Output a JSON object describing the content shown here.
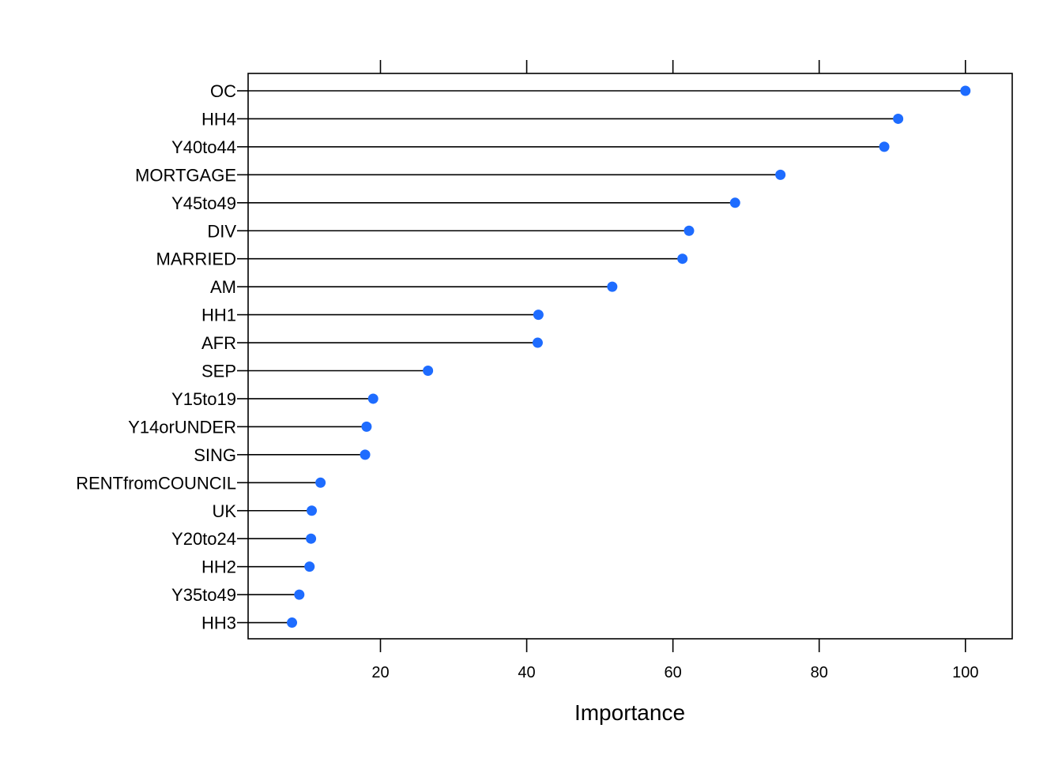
{
  "chart_data": {
    "type": "dotplot",
    "xlabel": "Importance",
    "ylabel": "",
    "title": "",
    "xlim": [
      1.9,
      106.4
    ],
    "xticks": [
      20,
      40,
      60,
      80,
      100
    ],
    "grid": false,
    "point_color": "#1e6cff",
    "categories": [
      "OC",
      "HH4",
      "Y40to44",
      "MORTGAGE",
      "Y45to49",
      "DIV",
      "MARRIED",
      "AM",
      "HH1",
      "AFR",
      "SEP",
      "Y15to19",
      "Y14orUNDER",
      "SING",
      "RENTfromCOUNCIL",
      "UK",
      "Y20to24",
      "HH2",
      "Y35to49",
      "HH3"
    ],
    "values": [
      100.0,
      90.8,
      88.9,
      74.7,
      68.5,
      62.2,
      61.3,
      51.7,
      41.6,
      41.5,
      26.5,
      19.0,
      18.1,
      17.9,
      11.8,
      10.6,
      10.5,
      10.3,
      8.9,
      7.9
    ]
  }
}
